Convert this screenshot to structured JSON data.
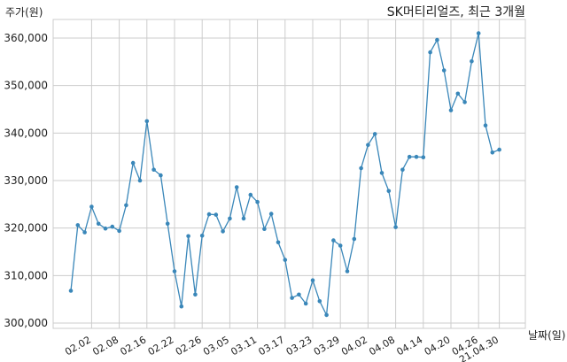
{
  "chart_data": {
    "type": "line",
    "title": "SK머티리얼즈, 최근 3개월",
    "ylabel": "주가(원)",
    "xlabel": "날짜(일)",
    "ylim": [
      300000,
      360000
    ],
    "yticks": [
      300000,
      310000,
      320000,
      330000,
      340000,
      350000,
      360000
    ],
    "ytick_labels": [
      "300,000",
      "310,000",
      "320,000",
      "330,000",
      "340,000",
      "350,000",
      "360,000"
    ],
    "xtick_labels": [
      "02.02",
      "02.08",
      "02.16",
      "02.22",
      "02.26",
      "03.05",
      "03.11",
      "03.17",
      "03.23",
      "03.29",
      "04.02",
      "04.08",
      "04.14",
      "04.20",
      "04.26",
      "21.04.30"
    ],
    "xtick_positions": [
      3,
      7,
      11,
      15,
      19,
      23,
      27,
      31,
      35,
      39,
      43,
      47,
      51,
      55,
      59,
      62
    ],
    "grid": true,
    "color": "#3a87b9",
    "series": [
      {
        "values": [
          306800,
          320600,
          319100,
          324500,
          320900,
          319900,
          320300,
          319400,
          324800,
          333700,
          330000,
          342500,
          332300,
          331100,
          320900,
          310900,
          303500,
          318300,
          306000,
          318400,
          322900,
          322800,
          319300,
          322000,
          328600,
          322000,
          327000,
          325500,
          319800,
          323000,
          317000,
          313300,
          305300,
          306000,
          304100,
          309000,
          304600,
          301700,
          317400,
          316300,
          310900,
          317700,
          332600,
          337500,
          339800,
          331600,
          327800,
          320200,
          332300,
          335000,
          335000,
          334900,
          357000,
          359600,
          353200,
          344800,
          348300,
          346500,
          355100,
          361000,
          341600,
          335900,
          336500
        ]
      }
    ]
  }
}
